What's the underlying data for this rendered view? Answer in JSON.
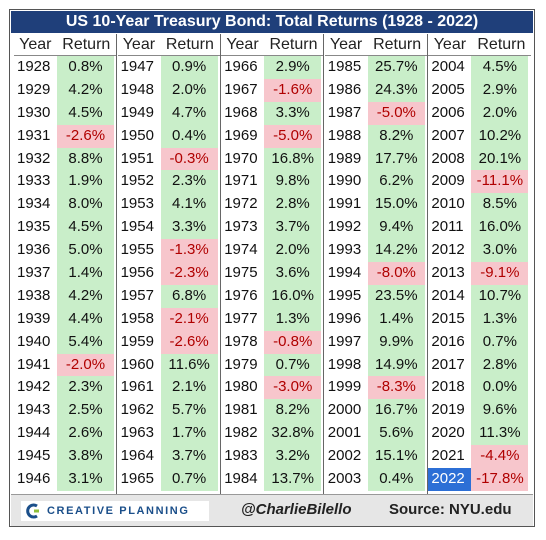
{
  "title": "US 10-Year Treasury Bond: Total Returns (1928 - 2022)",
  "headers": {
    "year": "Year",
    "return": "Return"
  },
  "columns": [
    [
      [
        "1928",
        "0.8%"
      ],
      [
        "1929",
        "4.2%"
      ],
      [
        "1930",
        "4.5%"
      ],
      [
        "1931",
        "-2.6%"
      ],
      [
        "1932",
        "8.8%"
      ],
      [
        "1933",
        "1.9%"
      ],
      [
        "1934",
        "8.0%"
      ],
      [
        "1935",
        "4.5%"
      ],
      [
        "1936",
        "5.0%"
      ],
      [
        "1937",
        "1.4%"
      ],
      [
        "1938",
        "4.2%"
      ],
      [
        "1939",
        "4.4%"
      ],
      [
        "1940",
        "5.4%"
      ],
      [
        "1941",
        "-2.0%"
      ],
      [
        "1942",
        "2.3%"
      ],
      [
        "1943",
        "2.5%"
      ],
      [
        "1944",
        "2.6%"
      ],
      [
        "1945",
        "3.8%"
      ],
      [
        "1946",
        "3.1%"
      ]
    ],
    [
      [
        "1947",
        "0.9%"
      ],
      [
        "1948",
        "2.0%"
      ],
      [
        "1949",
        "4.7%"
      ],
      [
        "1950",
        "0.4%"
      ],
      [
        "1951",
        "-0.3%"
      ],
      [
        "1952",
        "2.3%"
      ],
      [
        "1953",
        "4.1%"
      ],
      [
        "1954",
        "3.3%"
      ],
      [
        "1955",
        "-1.3%"
      ],
      [
        "1956",
        "-2.3%"
      ],
      [
        "1957",
        "6.8%"
      ],
      [
        "1958",
        "-2.1%"
      ],
      [
        "1959",
        "-2.6%"
      ],
      [
        "1960",
        "11.6%"
      ],
      [
        "1961",
        "2.1%"
      ],
      [
        "1962",
        "5.7%"
      ],
      [
        "1963",
        "1.7%"
      ],
      [
        "1964",
        "3.7%"
      ],
      [
        "1965",
        "0.7%"
      ]
    ],
    [
      [
        "1966",
        "2.9%"
      ],
      [
        "1967",
        "-1.6%"
      ],
      [
        "1968",
        "3.3%"
      ],
      [
        "1969",
        "-5.0%"
      ],
      [
        "1970",
        "16.8%"
      ],
      [
        "1971",
        "9.8%"
      ],
      [
        "1972",
        "2.8%"
      ],
      [
        "1973",
        "3.7%"
      ],
      [
        "1974",
        "2.0%"
      ],
      [
        "1975",
        "3.6%"
      ],
      [
        "1976",
        "16.0%"
      ],
      [
        "1977",
        "1.3%"
      ],
      [
        "1978",
        "-0.8%"
      ],
      [
        "1979",
        "0.7%"
      ],
      [
        "1980",
        "-3.0%"
      ],
      [
        "1981",
        "8.2%"
      ],
      [
        "1982",
        "32.8%"
      ],
      [
        "1983",
        "3.2%"
      ],
      [
        "1984",
        "13.7%"
      ]
    ],
    [
      [
        "1985",
        "25.7%"
      ],
      [
        "1986",
        "24.3%"
      ],
      [
        "1987",
        "-5.0%"
      ],
      [
        "1988",
        "8.2%"
      ],
      [
        "1989",
        "17.7%"
      ],
      [
        "1990",
        "6.2%"
      ],
      [
        "1991",
        "15.0%"
      ],
      [
        "1992",
        "9.4%"
      ],
      [
        "1993",
        "14.2%"
      ],
      [
        "1994",
        "-8.0%"
      ],
      [
        "1995",
        "23.5%"
      ],
      [
        "1996",
        "1.4%"
      ],
      [
        "1997",
        "9.9%"
      ],
      [
        "1998",
        "14.9%"
      ],
      [
        "1999",
        "-8.3%"
      ],
      [
        "2000",
        "16.7%"
      ],
      [
        "2001",
        "5.6%"
      ],
      [
        "2002",
        "15.1%"
      ],
      [
        "2003",
        "0.4%"
      ]
    ],
    [
      [
        "2004",
        "4.5%"
      ],
      [
        "2005",
        "2.9%"
      ],
      [
        "2006",
        "2.0%"
      ],
      [
        "2007",
        "10.2%"
      ],
      [
        "2008",
        "20.1%"
      ],
      [
        "2009",
        "-11.1%"
      ],
      [
        "2010",
        "8.5%"
      ],
      [
        "2011",
        "16.0%"
      ],
      [
        "2012",
        "3.0%"
      ],
      [
        "2013",
        "-9.1%"
      ],
      [
        "2014",
        "10.7%"
      ],
      [
        "2015",
        "1.3%"
      ],
      [
        "2016",
        "0.7%"
      ],
      [
        "2017",
        "2.8%"
      ],
      [
        "2018",
        "0.0%"
      ],
      [
        "2019",
        "9.6%"
      ],
      [
        "2020",
        "11.3%"
      ],
      [
        "2021",
        "-4.4%"
      ],
      [
        "2022",
        "-17.8%"
      ]
    ]
  ],
  "highlight_year": "2022",
  "colors": {
    "title_bg": "#1f3f7a",
    "positive": "#c9eec9",
    "negative": "#f7c6cc",
    "highlight": "#2c6fd6"
  },
  "footer": {
    "logo_text": "CREATIVE PLANNING",
    "handle": "@CharlieBilello",
    "source": "Source: NYU.edu"
  }
}
